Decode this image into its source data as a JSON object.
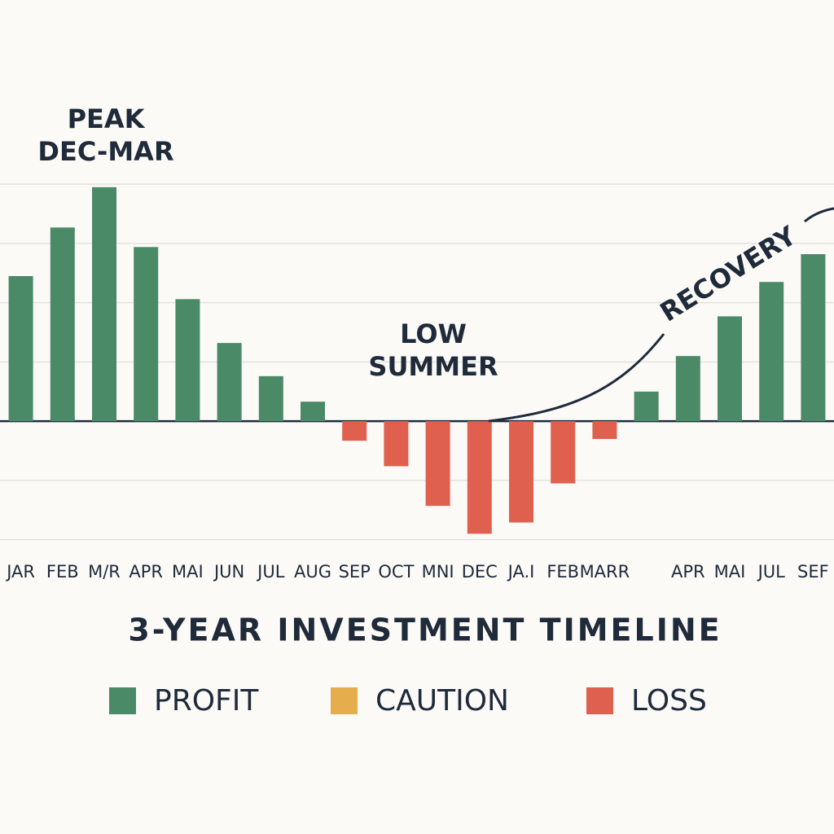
{
  "chart_data": {
    "type": "bar",
    "title": "3-YEAR INVESTMENT TIMELINE",
    "categories": [
      "JAR",
      "FEB",
      "M/R",
      "APR",
      "MAI",
      "JUN",
      "JUL",
      "AUG",
      "SEP",
      "OCT",
      "MNI",
      "DEC",
      "JA.I",
      "FEB",
      "MARR",
      null,
      "APR",
      "MAI",
      "JUL",
      "SEF"
    ],
    "series": [
      {
        "name": "PROFIT",
        "color": "#4b8a67",
        "values": [
          2.45,
          3.27,
          3.95,
          2.94,
          2.06,
          1.32,
          0.76,
          0.33,
          null,
          null,
          null,
          null,
          null,
          null,
          null,
          0.5,
          1.1,
          1.77,
          2.35,
          2.82
        ]
      },
      {
        "name": "CAUTION",
        "color": "#e6ad4c",
        "values": [
          null,
          null,
          null,
          null,
          null,
          null,
          null,
          null,
          null,
          null,
          null,
          null,
          null,
          null,
          null,
          null,
          null,
          null,
          null,
          null
        ]
      },
      {
        "name": "LOSS",
        "color": "#e0604f",
        "values": [
          null,
          null,
          null,
          null,
          null,
          null,
          null,
          null,
          -0.33,
          -0.76,
          -1.43,
          -1.9,
          -1.71,
          -1.05,
          -0.3,
          null,
          null,
          null,
          null,
          null
        ]
      }
    ],
    "ylim": [
      -2.5,
      7
    ],
    "yticks": [
      -2,
      -1,
      0,
      1,
      2,
      3,
      4
    ],
    "grid": true,
    "annotations": [
      {
        "lines": [
          "PEAK",
          "DEC-MAR"
        ]
      },
      {
        "lines": [
          "LOW",
          "SUMMER"
        ]
      },
      {
        "lines": [
          "RECOVERY"
        ]
      }
    ]
  }
}
